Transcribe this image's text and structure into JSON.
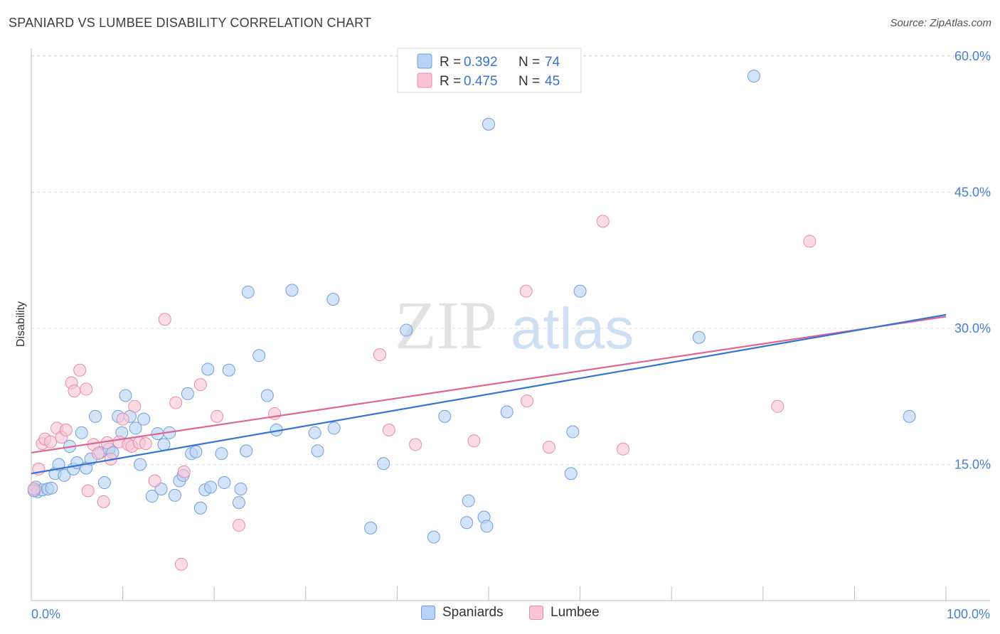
{
  "header": {
    "title": "SPANIARD VS LUMBEE DISABILITY CORRELATION CHART",
    "source": "Source: ZipAtlas.com"
  },
  "watermark": {
    "zip": "ZIP",
    "atlas": "atlas"
  },
  "legend": {
    "rows": [
      {
        "r_label": "R = ",
        "r_value": "0.392",
        "n_label": "N = ",
        "n_value": "74"
      },
      {
        "r_label": "R = ",
        "r_value": "0.475",
        "n_label": "N = ",
        "n_value": "45"
      }
    ]
  },
  "bottom_legend": {
    "series1": "Spaniards",
    "series2": "Lumbee"
  },
  "colors": {
    "blue_fill": "#b8d2f3",
    "blue_stroke": "#6e9fdc",
    "blue_line": "#3575d2",
    "pink_fill": "#f9c4d5",
    "pink_stroke": "#e98aab",
    "pink_line": "#e06690",
    "tick_text": "#4a7fd0"
  },
  "chart_data": {
    "type": "scatter",
    "title": "SPANIARD VS LUMBEE DISABILITY CORRELATION CHART",
    "xlabel": "",
    "ylabel": "Disability",
    "xlim": [
      0,
      100
    ],
    "ylim": [
      0,
      60
    ],
    "x_tick_labels": [
      "0.0%",
      "100.0%"
    ],
    "y_ticks": [
      15,
      30,
      45,
      60
    ],
    "y_tick_labels": [
      "15.0%",
      "30.0%",
      "45.0%",
      "60.0%"
    ],
    "grid": true,
    "legend_position": "top-center",
    "series": [
      {
        "name": "Spaniards",
        "r": 0.392,
        "n": 74,
        "trend": {
          "x": [
            0,
            100
          ],
          "y": [
            14.0,
            31.5
          ]
        },
        "points": [
          [
            0.5,
            12.5
          ],
          [
            0.7,
            12.0
          ],
          [
            1.2,
            12.2
          ],
          [
            1.8,
            12.3
          ],
          [
            2.2,
            12.4
          ],
          [
            2.6,
            14.0
          ],
          [
            3.0,
            15.0
          ],
          [
            3.6,
            13.8
          ],
          [
            4.2,
            17.0
          ],
          [
            4.6,
            14.5
          ],
          [
            5.0,
            15.2
          ],
          [
            5.5,
            18.5
          ],
          [
            6.0,
            14.6
          ],
          [
            6.5,
            15.6
          ],
          [
            7.0,
            20.3
          ],
          [
            7.5,
            16.3
          ],
          [
            8.0,
            13.0
          ],
          [
            8.5,
            16.7
          ],
          [
            8.9,
            16.3
          ],
          [
            9.5,
            20.3
          ],
          [
            9.9,
            18.5
          ],
          [
            10.3,
            22.6
          ],
          [
            10.8,
            20.3
          ],
          [
            11.4,
            19.0
          ],
          [
            11.9,
            15.0
          ],
          [
            12.3,
            20.0
          ],
          [
            13.2,
            11.5
          ],
          [
            13.8,
            18.4
          ],
          [
            14.2,
            12.3
          ],
          [
            14.5,
            17.2
          ],
          [
            15.1,
            18.5
          ],
          [
            15.7,
            11.6
          ],
          [
            16.2,
            13.2
          ],
          [
            16.6,
            13.8
          ],
          [
            17.1,
            22.8
          ],
          [
            17.5,
            16.2
          ],
          [
            18.0,
            16.4
          ],
          [
            18.5,
            10.2
          ],
          [
            19.0,
            12.2
          ],
          [
            19.3,
            25.5
          ],
          [
            19.6,
            12.5
          ],
          [
            20.8,
            16.2
          ],
          [
            21.1,
            13.0
          ],
          [
            21.6,
            25.4
          ],
          [
            22.7,
            10.8
          ],
          [
            22.9,
            12.3
          ],
          [
            23.5,
            16.5
          ],
          [
            23.7,
            34.0
          ],
          [
            24.9,
            27.0
          ],
          [
            25.8,
            22.6
          ],
          [
            26.8,
            18.8
          ],
          [
            28.5,
            34.2
          ],
          [
            31.0,
            18.5
          ],
          [
            31.3,
            16.5
          ],
          [
            33.0,
            33.2
          ],
          [
            33.1,
            19.0
          ],
          [
            37.1,
            8.0
          ],
          [
            38.5,
            15.1
          ],
          [
            41.0,
            29.8
          ],
          [
            44.0,
            7.0
          ],
          [
            45.2,
            20.3
          ],
          [
            47.6,
            8.6
          ],
          [
            47.8,
            11.0
          ],
          [
            49.5,
            9.2
          ],
          [
            49.8,
            8.2
          ],
          [
            50.0,
            52.5
          ],
          [
            52.0,
            20.8
          ],
          [
            59.0,
            14.0
          ],
          [
            59.2,
            18.6
          ],
          [
            60.0,
            34.1
          ],
          [
            73.0,
            29.0
          ],
          [
            79.0,
            57.8
          ],
          [
            96.0,
            20.3
          ],
          [
            0.3,
            12.1
          ]
        ]
      },
      {
        "name": "Lumbee",
        "r": 0.475,
        "n": 45,
        "trend": {
          "x": [
            0,
            100
          ],
          "y": [
            16.3,
            31.3
          ]
        },
        "points": [
          [
            0.3,
            12.3
          ],
          [
            0.8,
            14.5
          ],
          [
            1.2,
            17.3
          ],
          [
            1.5,
            17.8
          ],
          [
            2.1,
            17.5
          ],
          [
            2.8,
            19.0
          ],
          [
            3.3,
            18.0
          ],
          [
            3.8,
            18.8
          ],
          [
            4.4,
            24.0
          ],
          [
            4.7,
            23.1
          ],
          [
            5.3,
            25.4
          ],
          [
            6.0,
            23.3
          ],
          [
            6.2,
            12.1
          ],
          [
            6.8,
            17.2
          ],
          [
            7.3,
            16.2
          ],
          [
            7.9,
            10.9
          ],
          [
            8.3,
            17.4
          ],
          [
            8.7,
            15.6
          ],
          [
            9.6,
            17.5
          ],
          [
            10.0,
            20.0
          ],
          [
            10.6,
            17.2
          ],
          [
            11.0,
            17.0
          ],
          [
            11.3,
            21.4
          ],
          [
            11.8,
            17.4
          ],
          [
            12.5,
            17.3
          ],
          [
            13.5,
            13.2
          ],
          [
            14.6,
            31.0
          ],
          [
            15.8,
            21.8
          ],
          [
            16.4,
            4.0
          ],
          [
            16.7,
            14.2
          ],
          [
            18.5,
            23.8
          ],
          [
            20.3,
            20.3
          ],
          [
            22.7,
            8.3
          ],
          [
            26.6,
            20.6
          ],
          [
            38.1,
            27.1
          ],
          [
            39.1,
            18.8
          ],
          [
            42.0,
            17.2
          ],
          [
            48.4,
            17.6
          ],
          [
            54.1,
            34.1
          ],
          [
            54.2,
            22.0
          ],
          [
            56.6,
            16.9
          ],
          [
            62.5,
            41.8
          ],
          [
            64.7,
            16.7
          ],
          [
            81.6,
            21.4
          ],
          [
            85.1,
            39.6
          ]
        ]
      }
    ]
  }
}
